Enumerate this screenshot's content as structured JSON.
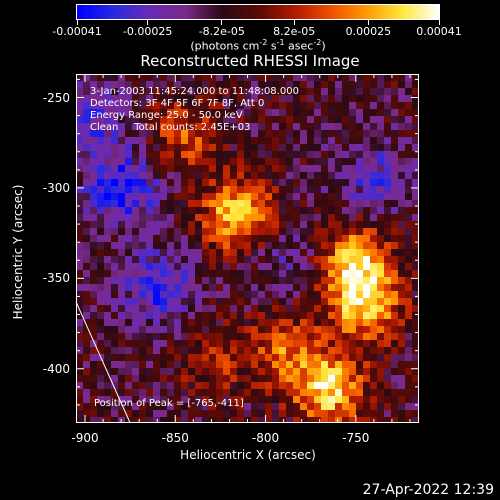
{
  "chart_data": {
    "type": "heatmap",
    "title": "Reconstructed RHESSI Image",
    "xlabel": "Heliocentric X (arcsec)",
    "ylabel": "Heliocentric Y (arcsec)",
    "xlim": [
      -905,
      -715
    ],
    "ylim": [
      -430,
      -237
    ],
    "x_ticks": [
      -900,
      -850,
      -800,
      -750
    ],
    "y_ticks": [
      -250,
      -300,
      -350,
      -400
    ],
    "colorbar": {
      "min": -0.00041,
      "max": 0.00041,
      "ticks": [
        -0.00041,
        -0.00025,
        -8.2e-05,
        8.2e-05,
        0.00025,
        0.00041
      ],
      "tick_labels": [
        "-0.00041",
        "-0.00025",
        "-8.2e-05",
        "8.2e-05",
        "0.00025",
        "0.00041"
      ],
      "units": "(photons cm s asec )",
      "colormap": [
        "#0000ff",
        "#2a2ae0",
        "#6a2ab5",
        "#7a2a8a",
        "#2a0a14",
        "#5a0a08",
        "#b01a00",
        "#f05000",
        "#ff9a00",
        "#ffe840",
        "#ffffff"
      ]
    },
    "annotations": [
      "3-Jan-2003 11:45:24.000 to 11:48:08.000",
      "Detectors: 3F 4F 5F 6F 7F 8F, Att 0",
      "Energy Range: 25.0 - 50.0 keV",
      "Clean     Total counts: 2.45E+03"
    ],
    "peak_label": "Position of Peak = [-765,-411]",
    "peak": {
      "x": -765,
      "y": -411
    },
    "limb_line": [
      [
        -905,
        -363
      ],
      [
        -875,
        -430
      ]
    ],
    "bright_sources": [
      {
        "x": -815,
        "y": -315,
        "value": 0.0004
      },
      {
        "x": -750,
        "y": -340,
        "value": 0.00036
      },
      {
        "x": -745,
        "y": -365,
        "value": 0.00038
      },
      {
        "x": -765,
        "y": -411,
        "value": 0.00041
      },
      {
        "x": -845,
        "y": -270,
        "value": 0.00022
      },
      {
        "x": -790,
        "y": -390,
        "value": 0.00024
      },
      {
        "x": -830,
        "y": -395,
        "value": 0.00015
      }
    ],
    "dark_regions": [
      {
        "x": -880,
        "y": -300,
        "value": -0.0003
      },
      {
        "x": -860,
        "y": -355,
        "value": -0.00025
      },
      {
        "x": -895,
        "y": -260,
        "value": -0.0002
      },
      {
        "x": -740,
        "y": -295,
        "value": -0.00018
      },
      {
        "x": -790,
        "y": -340,
        "value": -0.00012
      }
    ]
  },
  "timestamp": "27-Apr-2022 12:39"
}
